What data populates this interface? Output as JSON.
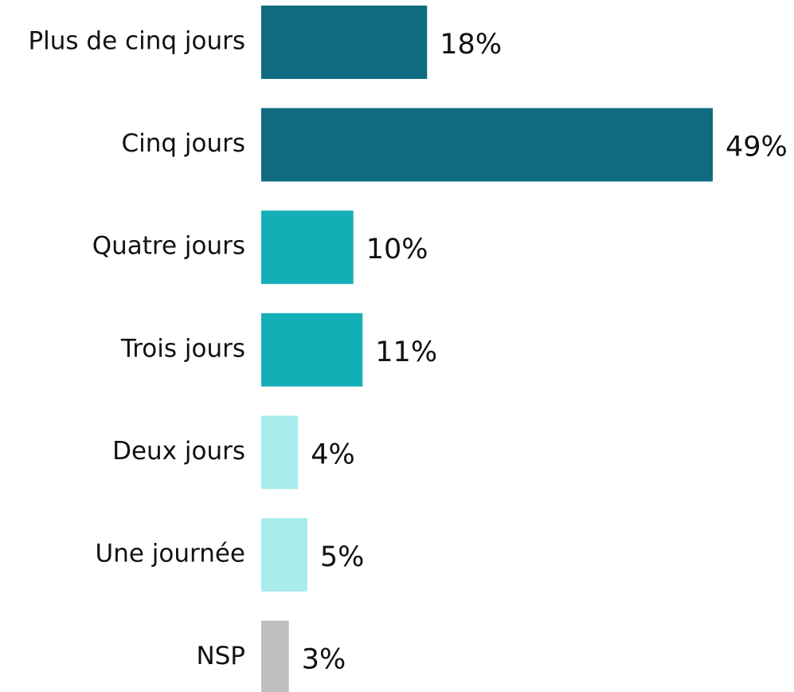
{
  "chart_data": {
    "type": "bar",
    "orientation": "horizontal",
    "categories": [
      "Plus de cinq jours",
      "Cinq jours",
      "Quatre jours",
      "Trois jours",
      "Deux jours",
      "Une journée",
      "NSP"
    ],
    "values": [
      18,
      49,
      10,
      11,
      4,
      5,
      3
    ],
    "value_labels": [
      "18%",
      "49%",
      "10%",
      "11%",
      "4%",
      "5%",
      "3%"
    ],
    "colors": [
      "#0f6b80",
      "#0f6b80",
      "#14afb6",
      "#14afb6",
      "#a8ecec",
      "#a8ecec",
      "#bfbfbf"
    ]
  }
}
